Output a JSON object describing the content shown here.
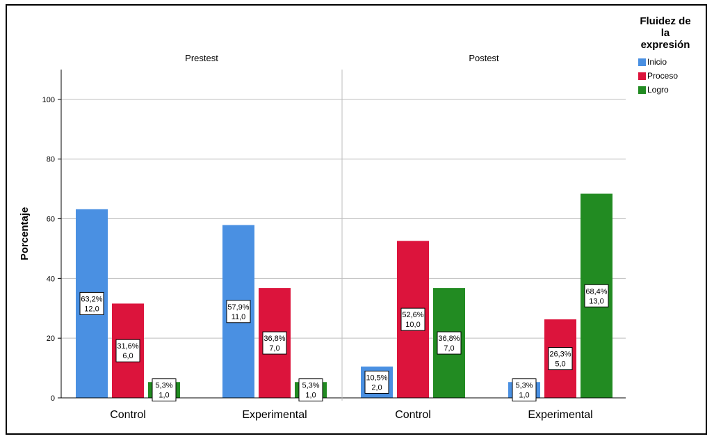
{
  "chart_data": {
    "type": "bar",
    "ylabel": "Porcentaje",
    "ylim": [
      0,
      110
    ],
    "yticks": [
      0,
      20,
      40,
      60,
      80,
      100
    ],
    "grid": true,
    "legend_title": "Fluidez de la expresión",
    "legend_title_lines": [
      "Fluidez de",
      "la",
      "expresión"
    ],
    "legend_position": "right",
    "series": [
      {
        "name": "Inicio",
        "color": "#4a90e2"
      },
      {
        "name": "Proceso",
        "color": "#dc143c"
      },
      {
        "name": "Logro",
        "color": "#228b22"
      }
    ],
    "panels": [
      {
        "title": "Prestest",
        "categories": [
          "Control",
          "Experimental"
        ],
        "values": {
          "Inicio": [
            63.2,
            57.9
          ],
          "Proceso": [
            31.6,
            36.8
          ],
          "Logro": [
            5.3,
            5.3
          ]
        },
        "labels": {
          "Inicio": [
            [
              "63,2%",
              "12,0"
            ],
            [
              "57,9%",
              "11,0"
            ]
          ],
          "Proceso": [
            [
              "31,6%",
              "6,0"
            ],
            [
              "36,8%",
              "7,0"
            ]
          ],
          "Logro": [
            [
              "5,3%",
              "1,0"
            ],
            [
              "5,3%",
              "1,0"
            ]
          ]
        }
      },
      {
        "title": "Postest",
        "categories": [
          "Control",
          "Experimental"
        ],
        "values": {
          "Inicio": [
            10.5,
            5.3
          ],
          "Proceso": [
            52.6,
            26.3
          ],
          "Logro": [
            36.8,
            68.4
          ]
        },
        "labels": {
          "Inicio": [
            [
              "10,5%",
              "2,0"
            ],
            [
              "5,3%",
              "1,0"
            ]
          ],
          "Proceso": [
            [
              "52,6%",
              "10,0"
            ],
            [
              "26,3%",
              "5,0"
            ]
          ],
          "Logro": [
            [
              "36,8%",
              "7,0"
            ],
            [
              "68,4%",
              "13,0"
            ]
          ]
        }
      }
    ]
  }
}
